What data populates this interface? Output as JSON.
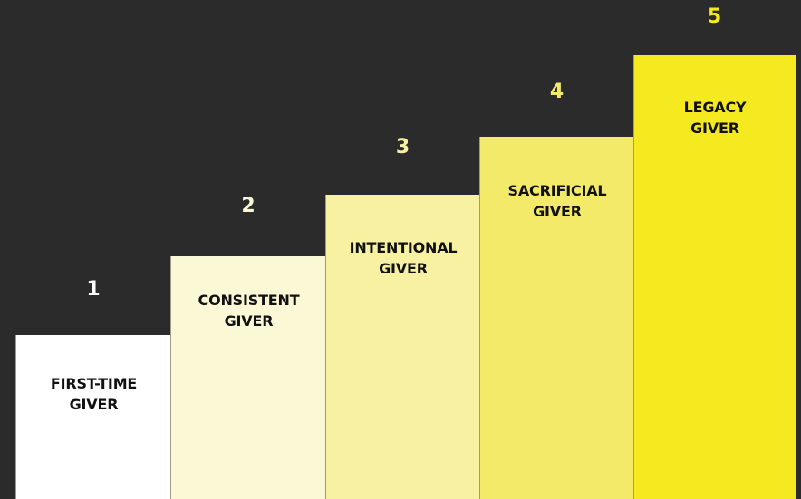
{
  "steps": [
    {
      "number": "1",
      "label_line1": "FIRST-TIME",
      "label_line2": "GIVER",
      "color": "#ffffff",
      "number_color": "#ffffff"
    },
    {
      "number": "2",
      "label_line1": "CONSISTENT",
      "label_line2": "GIVER",
      "color": "#fbf8d6",
      "number_color": "#fbf8d6"
    },
    {
      "number": "3",
      "label_line1": "INTENTIONAL",
      "label_line2": "GIVER",
      "color": "#f8f1a2",
      "number_color": "#f8f1a2"
    },
    {
      "number": "4",
      "label_line1": "SACRIFICIAL",
      "label_line2": "GIVER",
      "color": "#f4ea6a",
      "number_color": "#f4ea6a"
    },
    {
      "number": "5",
      "label_line1": "LEGACY",
      "label_line2": "GIVER",
      "color": "#f5ea1f",
      "number_color": "#f5ea1f"
    }
  ]
}
